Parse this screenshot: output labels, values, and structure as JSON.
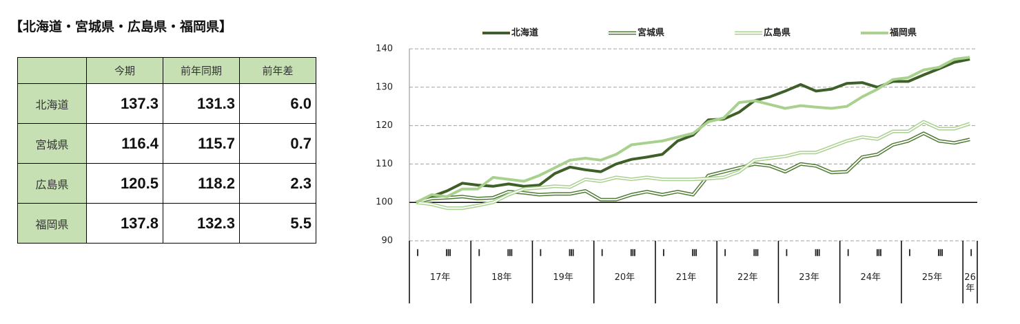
{
  "title": "【北海道・宮城県・広島県・福岡県】",
  "table": {
    "header": [
      "",
      "今期",
      "前年同期",
      "前年差"
    ],
    "rows": [
      [
        "北海道",
        "137.3",
        "131.3",
        "6.0"
      ],
      [
        "宮城県",
        "116.4",
        "115.7",
        "0.7"
      ],
      [
        "広島県",
        "120.5",
        "118.2",
        "2.3"
      ],
      [
        "福岡県",
        "137.8",
        "132.3",
        "5.5"
      ]
    ]
  },
  "chart_data": {
    "type": "line",
    "categories": [
      "Ⅰ",
      null,
      "Ⅲ",
      null,
      "Ⅰ",
      null,
      "Ⅲ",
      null,
      "Ⅰ",
      null,
      "Ⅲ",
      null,
      "Ⅰ",
      null,
      "Ⅲ",
      null,
      "Ⅰ",
      null,
      "Ⅲ",
      null,
      "Ⅰ",
      null,
      "Ⅲ",
      null,
      "Ⅰ",
      null,
      "Ⅲ",
      null,
      "Ⅰ",
      null,
      "Ⅲ",
      null,
      "Ⅰ",
      null,
      "Ⅲ",
      null,
      "Ⅰ"
    ],
    "x_groups": [
      "17年",
      "18年",
      "19年",
      "20年",
      "21年",
      "22年",
      "23年",
      "24年",
      "25年",
      "26年"
    ],
    "ylim": [
      90,
      140
    ],
    "yticks": [
      90,
      100,
      110,
      120,
      130,
      140
    ],
    "grid": true,
    "xaxis_crosses": 100,
    "legend": "top",
    "series": [
      {
        "name": "北海道",
        "color": "#3e5f28",
        "style": "solid",
        "values": [
          100,
          101.5,
          103,
          105,
          104.5,
          104.2,
          104.8,
          104.2,
          104.5,
          107.5,
          109.2,
          108.5,
          108,
          110,
          111.2,
          111.8,
          112.5,
          116,
          117.5,
          121.5,
          121.7,
          123.5,
          126.5,
          127.5,
          129,
          130.7,
          129,
          129.5,
          131,
          131.2,
          130,
          131.5,
          131.5,
          133.2,
          134.8,
          136.5,
          137.3
        ]
      },
      {
        "name": "宮城県",
        "color": "#4f7a33",
        "style": "double",
        "values": [
          100,
          101,
          101.2,
          101.5,
          101,
          101.2,
          102.8,
          102.5,
          102,
          102.2,
          102.2,
          103,
          100.7,
          100.7,
          102,
          102.8,
          102,
          102.8,
          102,
          107,
          108,
          109,
          110,
          109.5,
          108,
          110,
          109.5,
          107.8,
          108,
          111.8,
          112.5,
          115,
          116,
          118,
          116,
          115.5,
          116.4
        ]
      },
      {
        "name": "広島県",
        "color": "#a9d08e",
        "style": "double",
        "values": [
          100,
          99.5,
          98.5,
          98.5,
          99.2,
          100,
          102,
          103.5,
          103.8,
          104.2,
          104,
          106,
          105.5,
          106.5,
          106,
          106.5,
          106,
          106,
          106,
          106.2,
          106.5,
          108,
          111,
          111.5,
          112,
          113,
          113,
          114.5,
          116,
          117,
          116.5,
          118.5,
          118.5,
          121,
          119.2,
          119.2,
          120.5
        ]
      },
      {
        "name": "福岡県",
        "color": "#a9d18e",
        "style": "solid",
        "values": [
          100,
          102,
          101.5,
          103.5,
          103.5,
          106.5,
          106,
          105.5,
          107,
          109,
          111,
          111.5,
          111,
          112.5,
          115,
          115.5,
          116,
          117,
          118,
          121,
          122,
          126,
          126.5,
          125.5,
          124.5,
          125.2,
          124.8,
          124.5,
          125,
          127.5,
          129.5,
          132,
          132.5,
          134.5,
          135.2,
          137.3,
          137.8
        ]
      }
    ]
  }
}
